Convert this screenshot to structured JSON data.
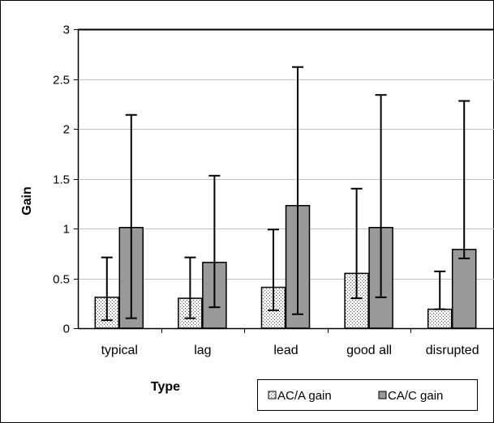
{
  "chart_data": {
    "type": "bar",
    "xlabel": "Type",
    "ylabel": "Gain",
    "ylim": [
      0,
      3
    ],
    "yticks": [
      0,
      0.5,
      1,
      1.5,
      2,
      2.5,
      3
    ],
    "ytick_labels": [
      "0",
      "0.5",
      "1",
      "1.5",
      "2",
      "2.5",
      "3"
    ],
    "grid": true,
    "legend_position": "bottom-right",
    "categories": [
      "typical",
      "lag",
      "lead",
      "good all",
      "disrupted"
    ],
    "series": [
      {
        "name": "AC/A gain",
        "color": "#f0f0f0",
        "pattern": "dotted",
        "values": [
          0.31,
          0.3,
          0.41,
          0.55,
          0.19
        ],
        "error_low": [
          0.08,
          0.1,
          0.18,
          0.3,
          0.19
        ],
        "error_high": [
          0.71,
          0.71,
          0.99,
          1.4,
          0.57
        ]
      },
      {
        "name": "CA/C gain",
        "color": "#999999",
        "pattern": "solid",
        "values": [
          1.01,
          0.66,
          1.23,
          1.01,
          0.79
        ],
        "error_low": [
          0.1,
          0.21,
          0.14,
          0.31,
          0.7
        ],
        "error_high": [
          2.14,
          1.53,
          2.62,
          2.34,
          2.28
        ]
      }
    ]
  }
}
